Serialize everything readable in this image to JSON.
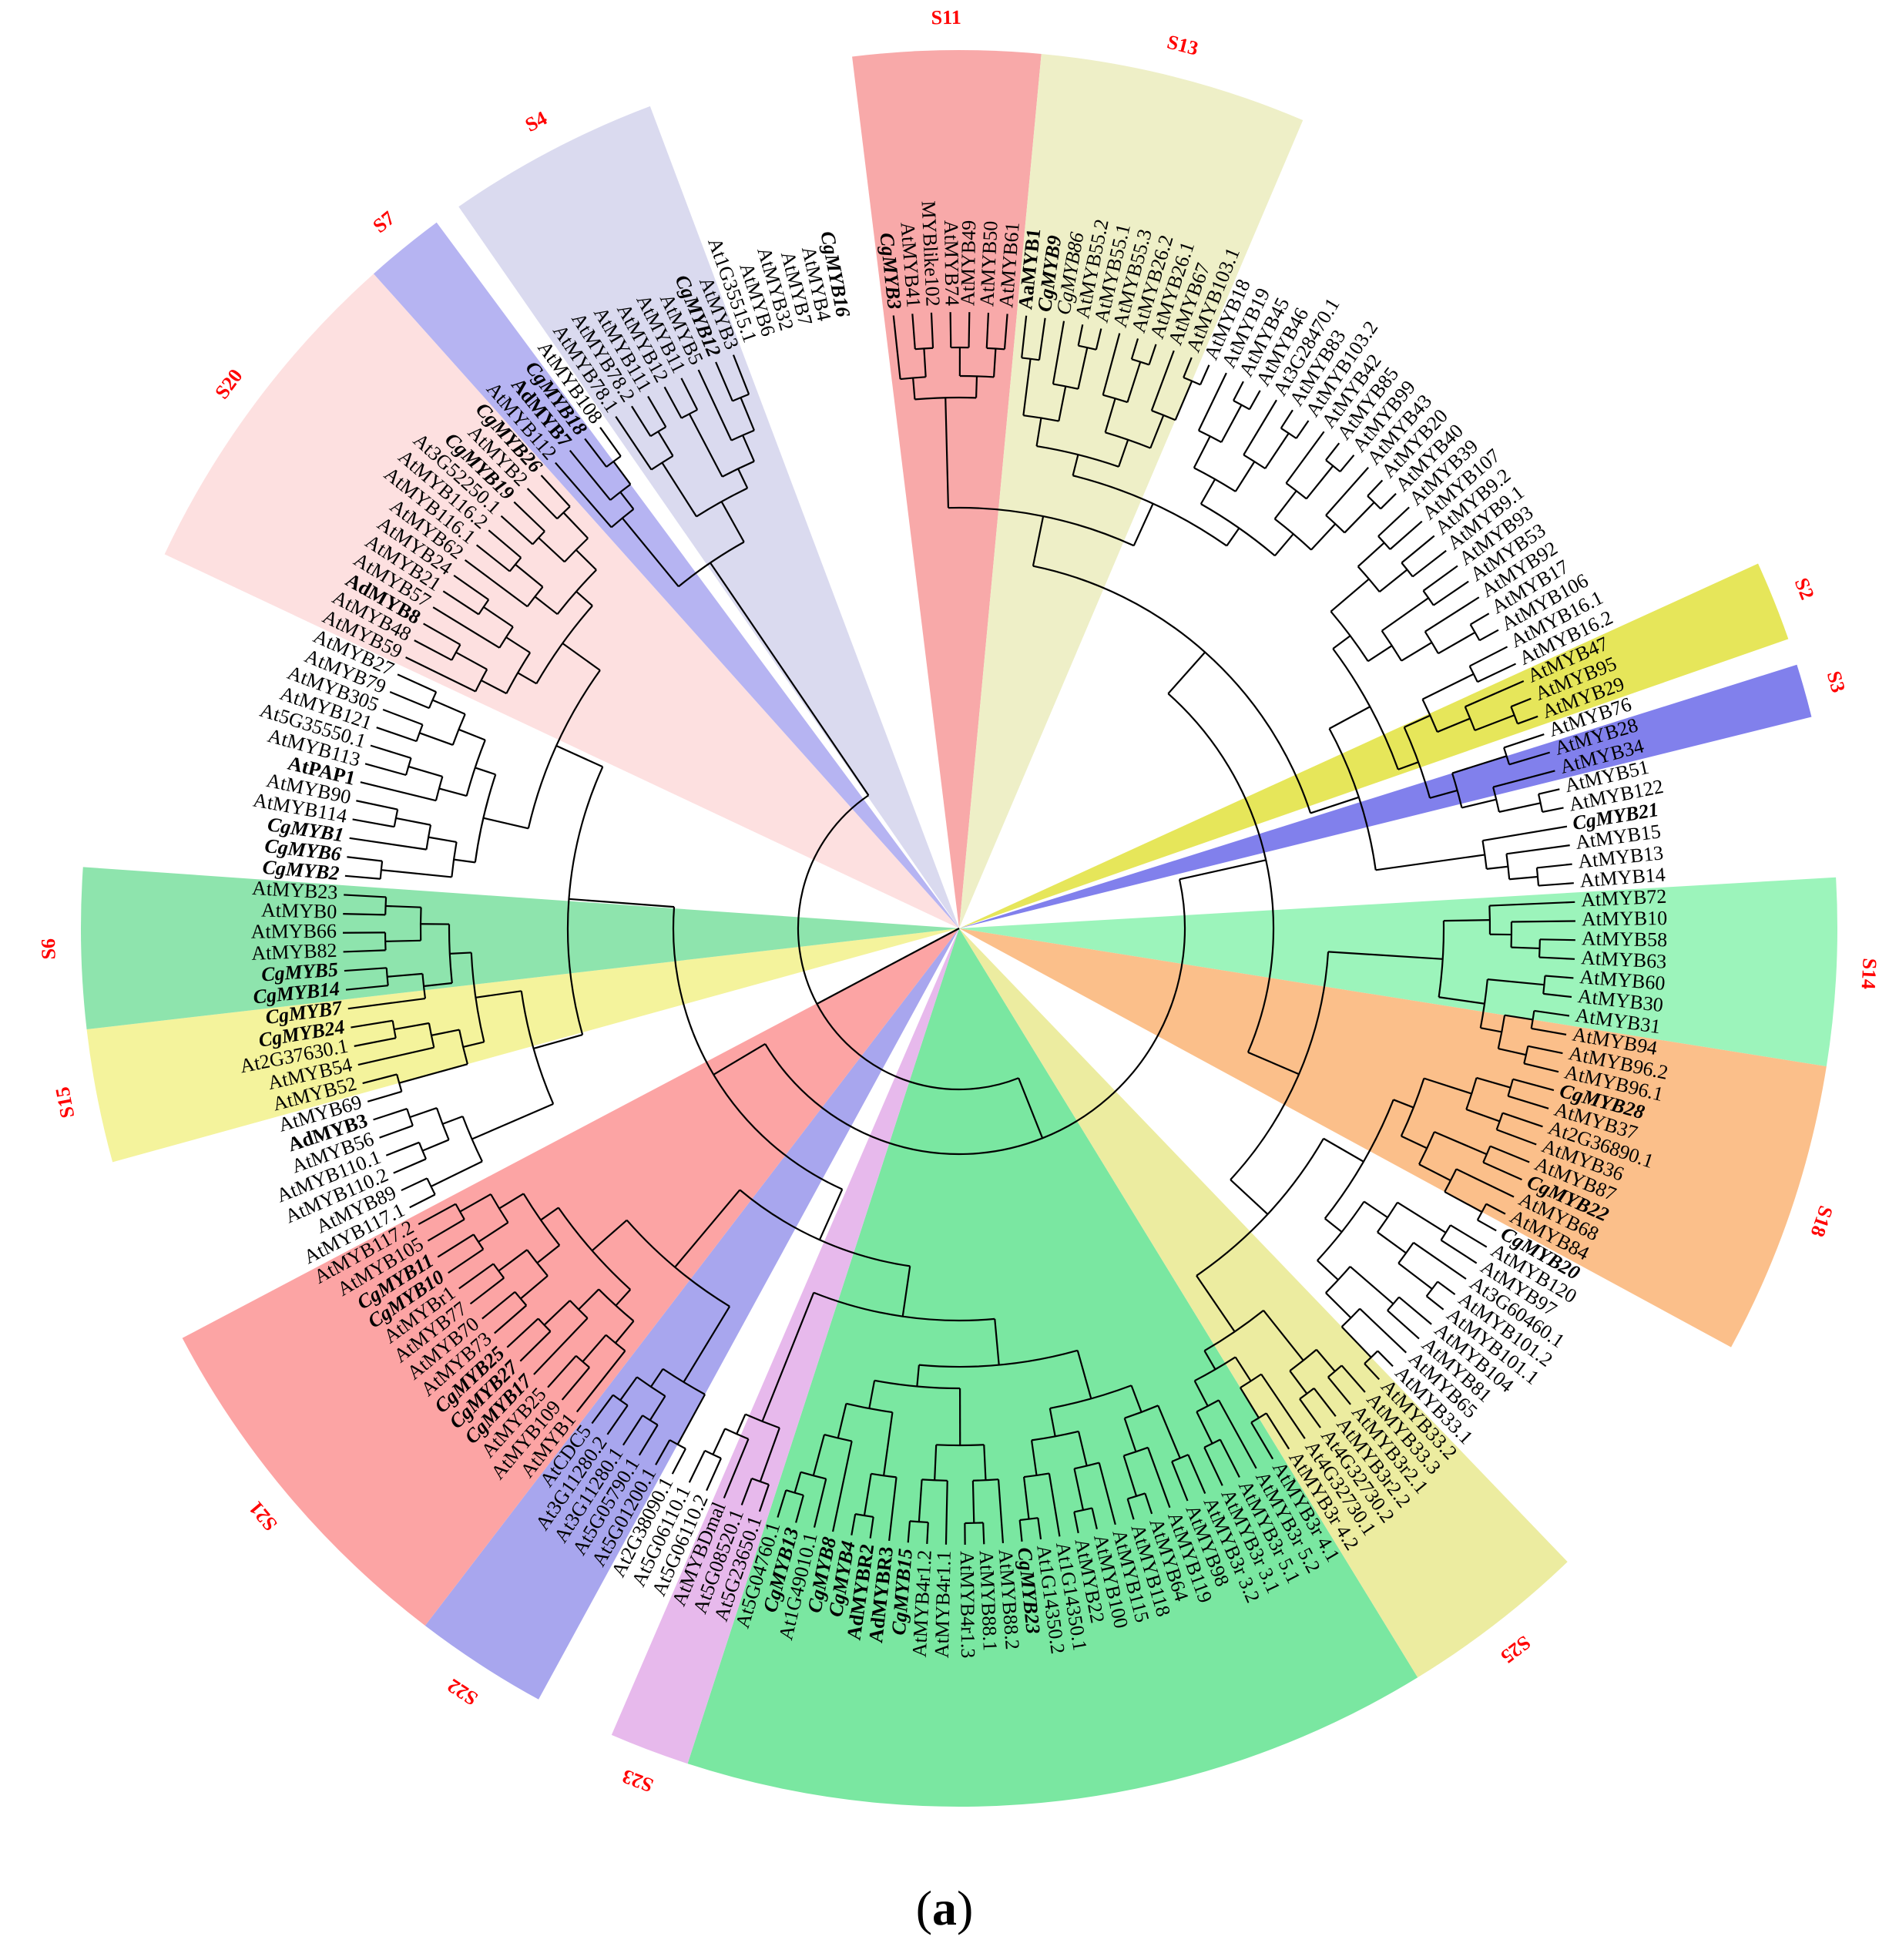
{
  "figure": {
    "panel_label_open": "(",
    "panel_label_letter": "a",
    "panel_label_close": ")"
  },
  "clades": [
    {
      "label": "S11",
      "color": "#f8a9a9",
      "from": 0,
      "to": 7
    },
    {
      "label": "S13",
      "color": "#eeefc7",
      "from": 7,
      "to": 17
    },
    {
      "label": "S2",
      "color": "#e6e65a",
      "from": 41,
      "to": 44
    },
    {
      "label": "S3",
      "color": "#8180ec",
      "from": 45,
      "to": 47
    },
    {
      "label": "S14",
      "color": "#9cf4bb",
      "from": 53,
      "to": 60
    },
    {
      "label": "S18",
      "color": "#fbbf8a",
      "from": 60,
      "to": 71
    },
    {
      "label": "S25",
      "color": "#ececa0",
      "from": 81,
      "to": 88
    },
    {
      "label": "S23",
      "color": "#e7b9ec",
      "from": 116,
      "to": 119
    },
    {
      "label": "S22",
      "color": "#a8a6ee",
      "from": 122,
      "to": 127
    },
    {
      "label": "S21",
      "color": "#fca4a4",
      "from": 127,
      "to": 141
    },
    {
      "label": "S15",
      "color": "#f4f39c",
      "from": 148,
      "to": 153
    },
    {
      "label": "S6",
      "color": "#8ee4ad",
      "from": 153,
      "to": 159
    },
    {
      "label": "S20",
      "color": "#fde0e0",
      "from": 171,
      "to": 184
    },
    {
      "label": "S7",
      "color": "#b6b4f2",
      "from": 184,
      "to": 187
    },
    {
      "label": "S4",
      "color": "#dadaef",
      "from": 188,
      "to": 196
    }
  ],
  "big_green": {
    "color": "#7ae7a1",
    "from": 88,
    "to": 116
  },
  "leaves": [
    {
      "name": "CgMYB3",
      "style": "cg"
    },
    {
      "name": "AtMYB41",
      "style": ""
    },
    {
      "name": "MYBlike102",
      "style": ""
    },
    {
      "name": "AtMYB74",
      "style": ""
    },
    {
      "name": "AtMYB49",
      "style": ""
    },
    {
      "name": "AtMYB50",
      "style": ""
    },
    {
      "name": "AtMYB61",
      "style": ""
    },
    {
      "name": "AaMYB1",
      "style": "bold"
    },
    {
      "name": "CgMYB9",
      "style": "cg"
    },
    {
      "name": "CgMYB86",
      "style": "cgm"
    },
    {
      "name": "AtMYB55.2",
      "style": ""
    },
    {
      "name": "AtMYB55.1",
      "style": ""
    },
    {
      "name": "AtMYB55.3",
      "style": ""
    },
    {
      "name": "AtMYB26.2",
      "style": ""
    },
    {
      "name": "AtMYB26.1",
      "style": ""
    },
    {
      "name": "AtMYB67",
      "style": ""
    },
    {
      "name": "AtMYB103.1",
      "style": ""
    },
    {
      "name": "AtMYB18",
      "style": ""
    },
    {
      "name": "AtMYB19",
      "style": ""
    },
    {
      "name": "AtMYB45",
      "style": ""
    },
    {
      "name": "AtMYB46",
      "style": ""
    },
    {
      "name": "At3G28470.1",
      "style": ""
    },
    {
      "name": "AtMYB83",
      "style": ""
    },
    {
      "name": "AtMYB103.2",
      "style": ""
    },
    {
      "name": "AtMYB42",
      "style": ""
    },
    {
      "name": "AtMYB85",
      "style": ""
    },
    {
      "name": "AtMYB99",
      "style": ""
    },
    {
      "name": "AtMYB43",
      "style": ""
    },
    {
      "name": "AtMYB20",
      "style": ""
    },
    {
      "name": "AtMYB40",
      "style": ""
    },
    {
      "name": "AtMYB39",
      "style": ""
    },
    {
      "name": "AtMYB107",
      "style": ""
    },
    {
      "name": "AtMYB9.2",
      "style": ""
    },
    {
      "name": "AtMYB9.1",
      "style": ""
    },
    {
      "name": "AtMYB93",
      "style": ""
    },
    {
      "name": "AtMYB53",
      "style": ""
    },
    {
      "name": "AtMYB92",
      "style": ""
    },
    {
      "name": "AtMYB17",
      "style": ""
    },
    {
      "name": "AtMYB106",
      "style": ""
    },
    {
      "name": "AtMYB16.1",
      "style": ""
    },
    {
      "name": "AtMYB16.2",
      "style": ""
    },
    {
      "name": "AtMYB47",
      "style": ""
    },
    {
      "name": "AtMYB95",
      "style": ""
    },
    {
      "name": "AtMYB29",
      "style": ""
    },
    {
      "name": "AtMYB76",
      "style": ""
    },
    {
      "name": "AtMYB28",
      "style": ""
    },
    {
      "name": "AtMYB34",
      "style": ""
    },
    {
      "name": "AtMYB51",
      "style": ""
    },
    {
      "name": "AtMYB122",
      "style": ""
    },
    {
      "name": "CgMYB21",
      "style": "cg"
    },
    {
      "name": "AtMYB15",
      "style": ""
    },
    {
      "name": "AtMYB13",
      "style": ""
    },
    {
      "name": "AtMYB14",
      "style": ""
    },
    {
      "name": "AtMYB72",
      "style": ""
    },
    {
      "name": "AtMYB10",
      "style": ""
    },
    {
      "name": "AtMYB58",
      "style": ""
    },
    {
      "name": "AtMYB63",
      "style": ""
    },
    {
      "name": "AtMYB60",
      "style": ""
    },
    {
      "name": "AtMYB30",
      "style": ""
    },
    {
      "name": "AtMYB31",
      "style": ""
    },
    {
      "name": "AtMYB94",
      "style": ""
    },
    {
      "name": "AtMYB96.2",
      "style": ""
    },
    {
      "name": "AtMYB96.1",
      "style": ""
    },
    {
      "name": "CgMYB28",
      "style": "cg"
    },
    {
      "name": "AtMYB37",
      "style": ""
    },
    {
      "name": "At2G36890.1",
      "style": ""
    },
    {
      "name": "AtMYB36",
      "style": ""
    },
    {
      "name": "AtMYB87",
      "style": ""
    },
    {
      "name": "CgMYB22",
      "style": "cg"
    },
    {
      "name": "AtMYB68",
      "style": ""
    },
    {
      "name": "AtMYB84",
      "style": ""
    },
    {
      "name": "CgMYB20",
      "style": "cg"
    },
    {
      "name": "AtMYB120",
      "style": ""
    },
    {
      "name": "AtMYB97",
      "style": ""
    },
    {
      "name": "At3G60460.1",
      "style": ""
    },
    {
      "name": "AtMYB101.2",
      "style": ""
    },
    {
      "name": "AtMYB101.1",
      "style": ""
    },
    {
      "name": "AtMYB104",
      "style": ""
    },
    {
      "name": "AtMYB81",
      "style": ""
    },
    {
      "name": "AtMYB65",
      "style": ""
    },
    {
      "name": "AtMYB33.1",
      "style": ""
    },
    {
      "name": "AtMYB33.2",
      "style": ""
    },
    {
      "name": "AtMYB33.3",
      "style": ""
    },
    {
      "name": "AtMYB3r2.1",
      "style": ""
    },
    {
      "name": "AtMYB3r2.2",
      "style": ""
    },
    {
      "name": "At4G32730.2",
      "style": ""
    },
    {
      "name": "At4G32730.1",
      "style": ""
    },
    {
      "name": "AtMYB3r 4.2",
      "style": ""
    },
    {
      "name": "AtMYB3r 4.1",
      "style": ""
    },
    {
      "name": "AtMYB3r 5.2",
      "style": ""
    },
    {
      "name": "AtMYB3r 5.1",
      "style": ""
    },
    {
      "name": "AtMYB3r 3.1",
      "style": ""
    },
    {
      "name": "AtMYB3r 3.2",
      "style": ""
    },
    {
      "name": "AtMYB98",
      "style": ""
    },
    {
      "name": "AtMYB119",
      "style": ""
    },
    {
      "name": "AtMYB64",
      "style": ""
    },
    {
      "name": "AtMYB118",
      "style": ""
    },
    {
      "name": "AtMYB115",
      "style": ""
    },
    {
      "name": "AtMYB100",
      "style": ""
    },
    {
      "name": "AtMYB22",
      "style": ""
    },
    {
      "name": "At1G14350.1",
      "style": ""
    },
    {
      "name": "At1G14350.2",
      "style": ""
    },
    {
      "name": "CgMYB23",
      "style": "cg"
    },
    {
      "name": "AtMYB88.2",
      "style": ""
    },
    {
      "name": "AtMYB88.1",
      "style": ""
    },
    {
      "name": "AtMYB4r1.3",
      "style": ""
    },
    {
      "name": "AtMYB4r1.1",
      "style": ""
    },
    {
      "name": "AtMYB4r1.2",
      "style": ""
    },
    {
      "name": "CgMYB15",
      "style": "cg"
    },
    {
      "name": "AdMYBR3",
      "style": "bold"
    },
    {
      "name": "AdMYBR2",
      "style": "bold"
    },
    {
      "name": "CgMYB4",
      "style": "cg"
    },
    {
      "name": "CgMYB8",
      "style": "cg"
    },
    {
      "name": "At1G49010.1",
      "style": ""
    },
    {
      "name": "CgMYB13",
      "style": "cg"
    },
    {
      "name": "At5G04760.1",
      "style": ""
    },
    {
      "name": "At5G23650.1",
      "style": ""
    },
    {
      "name": "At5G08520.1",
      "style": ""
    },
    {
      "name": "AtMYBDmal",
      "style": ""
    },
    {
      "name": "At5G06110.2",
      "style": ""
    },
    {
      "name": "At5G06110.1",
      "style": ""
    },
    {
      "name": "At2G38090.1",
      "style": ""
    },
    {
      "name": "At5G01200.1",
      "style": ""
    },
    {
      "name": "At5G05790.1",
      "style": ""
    },
    {
      "name": "At3G11280.1",
      "style": ""
    },
    {
      "name": "At3G11280.2",
      "style": ""
    },
    {
      "name": "AtCDC5",
      "style": ""
    },
    {
      "name": "AtMYB1",
      "style": ""
    },
    {
      "name": "AtMYB109",
      "style": ""
    },
    {
      "name": "AtMYB25",
      "style": ""
    },
    {
      "name": "CgMYB17",
      "style": "cg"
    },
    {
      "name": "CgMYB27",
      "style": "cg"
    },
    {
      "name": "CgMYB25",
      "style": "cg"
    },
    {
      "name": "AtMYB73",
      "style": ""
    },
    {
      "name": "AtMYB70",
      "style": ""
    },
    {
      "name": "AtMYB77",
      "style": ""
    },
    {
      "name": "AtMYBr1",
      "style": ""
    },
    {
      "name": "CgMYB10",
      "style": "cg"
    },
    {
      "name": "CgMYB11",
      "style": "cg"
    },
    {
      "name": "AtMYB105",
      "style": ""
    },
    {
      "name": "AtMYB117.2",
      "style": ""
    },
    {
      "name": "AtMYB117.1",
      "style": ""
    },
    {
      "name": "AtMYB89",
      "style": ""
    },
    {
      "name": "AtMYB110.2",
      "style": ""
    },
    {
      "name": "AtMYB110.1",
      "style": ""
    },
    {
      "name": "AtMYB56",
      "style": ""
    },
    {
      "name": "AdMYB3",
      "style": "bold"
    },
    {
      "name": "AtMYB69",
      "style": ""
    },
    {
      "name": "AtMYB52",
      "style": ""
    },
    {
      "name": "AtMYB54",
      "style": ""
    },
    {
      "name": "At2G37630.1",
      "style": ""
    },
    {
      "name": "CgMYB24",
      "style": "cg"
    },
    {
      "name": "CgMYB7",
      "style": "cg"
    },
    {
      "name": "CgMYB14",
      "style": "cg"
    },
    {
      "name": "CgMYB5",
      "style": "cg"
    },
    {
      "name": "AtMYB82",
      "style": ""
    },
    {
      "name": "AtMYB66",
      "style": ""
    },
    {
      "name": "AtMYB0",
      "style": ""
    },
    {
      "name": "AtMYB23",
      "style": ""
    },
    {
      "name": "CgMYB2",
      "style": "cg"
    },
    {
      "name": "CgMYB6",
      "style": "cg"
    },
    {
      "name": "CgMYB1",
      "style": "cg"
    },
    {
      "name": "AtMYB114",
      "style": ""
    },
    {
      "name": "AtMYB90",
      "style": ""
    },
    {
      "name": "AtPAP1",
      "style": "bold"
    },
    {
      "name": "AtMYB113",
      "style": ""
    },
    {
      "name": "At5G35550.1",
      "style": ""
    },
    {
      "name": "AtMYB121",
      "style": ""
    },
    {
      "name": "AtMYB305",
      "style": ""
    },
    {
      "name": "AtMYB79",
      "style": ""
    },
    {
      "name": "AtMYB27",
      "style": ""
    },
    {
      "name": "AtMYB59",
      "style": ""
    },
    {
      "name": "AtMYB48",
      "style": ""
    },
    {
      "name": "AdMYB8",
      "style": "bold"
    },
    {
      "name": "AtMYB57",
      "style": ""
    },
    {
      "name": "AtMYB21",
      "style": ""
    },
    {
      "name": "AtMYB24",
      "style": ""
    },
    {
      "name": "AtMYB62",
      "style": ""
    },
    {
      "name": "AtMYB116.1",
      "style": ""
    },
    {
      "name": "AtMYB116.2",
      "style": ""
    },
    {
      "name": "At3G52250.1",
      "style": ""
    },
    {
      "name": "CgMYB19",
      "style": "cg"
    },
    {
      "name": "AtMYB2",
      "style": ""
    },
    {
      "name": "CgMYB26",
      "style": "cg"
    },
    {
      "name": "AtMYB112",
      "style": ""
    },
    {
      "name": "AdMYB7",
      "style": "bold"
    },
    {
      "name": "CgMYB18",
      "style": "cg"
    },
    {
      "name": "AtMYB108",
      "style": ""
    },
    {
      "name": "AtMYB78.1",
      "style": ""
    },
    {
      "name": "AtMYB78.2",
      "style": ""
    },
    {
      "name": "AtMYB111",
      "style": ""
    },
    {
      "name": "AtMYB12",
      "style": ""
    },
    {
      "name": "AtMYB11",
      "style": ""
    },
    {
      "name": "AtMYB5",
      "style": ""
    },
    {
      "name": "CgMYB12",
      "style": "cg"
    },
    {
      "name": "AtMYB3",
      "style": ""
    },
    {
      "name": "At1G35515.1",
      "style": ""
    },
    {
      "name": "AtMYB6",
      "style": ""
    },
    {
      "name": "AtMYB32",
      "style": ""
    },
    {
      "name": "AtMYB7",
      "style": ""
    },
    {
      "name": "AtMYB4",
      "style": ""
    },
    {
      "name": "CgMYB16",
      "style": "cg"
    }
  ]
}
